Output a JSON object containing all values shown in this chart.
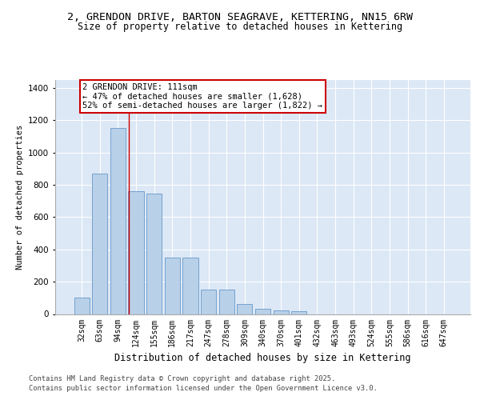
{
  "title": "2, GRENDON DRIVE, BARTON SEAGRAVE, KETTERING, NN15 6RW",
  "subtitle": "Size of property relative to detached houses in Kettering",
  "xlabel": "Distribution of detached houses by size in Kettering",
  "ylabel": "Number of detached properties",
  "categories": [
    "32sqm",
    "63sqm",
    "94sqm",
    "124sqm",
    "155sqm",
    "186sqm",
    "217sqm",
    "247sqm",
    "278sqm",
    "309sqm",
    "340sqm",
    "370sqm",
    "401sqm",
    "432sqm",
    "463sqm",
    "493sqm",
    "524sqm",
    "555sqm",
    "586sqm",
    "616sqm",
    "647sqm"
  ],
  "values": [
    100,
    870,
    1155,
    760,
    745,
    350,
    350,
    150,
    150,
    60,
    30,
    20,
    15,
    0,
    0,
    0,
    0,
    0,
    0,
    0,
    0
  ],
  "bar_color": "#b8d0e8",
  "bar_edge_color": "#6699cc",
  "background_color": "#dce8f5",
  "grid_color": "#ffffff",
  "vline_x": 2.62,
  "vline_color": "#cc0000",
  "annotation_text": "2 GRENDON DRIVE: 111sqm\n← 47% of detached houses are smaller (1,628)\n52% of semi-detached houses are larger (1,822) →",
  "footer_line1": "Contains HM Land Registry data © Crown copyright and database right 2025.",
  "footer_line2": "Contains public sector information licensed under the Open Government Licence v3.0.",
  "ylim": [
    0,
    1450
  ],
  "yticks": [
    0,
    200,
    400,
    600,
    800,
    1000,
    1200,
    1400
  ]
}
